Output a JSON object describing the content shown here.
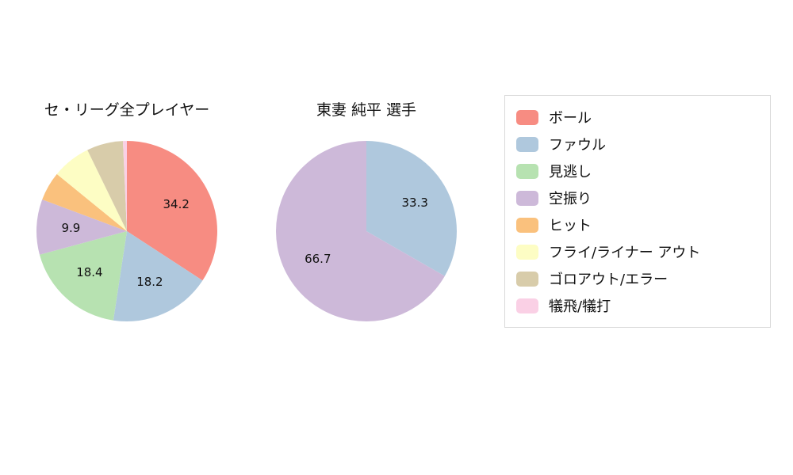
{
  "chart_data": [
    {
      "type": "pie",
      "title": "セ・リーグ全プレイヤー",
      "labels": [
        "ボール",
        "ファウル",
        "見逃し",
        "空振り",
        "ヒット",
        "フライ/ライナー アウト",
        "ゴロアウト/エラー",
        "犠飛/犠打"
      ],
      "values": [
        34.2,
        18.2,
        18.4,
        9.9,
        5.2,
        6.9,
        6.5,
        0.7
      ],
      "shown_value_labels": [
        "34.2",
        "18.2",
        "18.4",
        "9.9",
        "",
        "",
        "",
        ""
      ],
      "start_angle": "top",
      "direction": "clockwise"
    },
    {
      "type": "pie",
      "title": "東妻 純平 選手",
      "labels": [
        "ファウル",
        "空振り"
      ],
      "values": [
        33.3,
        66.7
      ],
      "shown_value_labels": [
        "33.3",
        "66.7"
      ],
      "start_angle": "top",
      "direction": "clockwise"
    }
  ],
  "legend": {
    "position": "right",
    "items": [
      {
        "label": "ボール",
        "color": "#f78c82"
      },
      {
        "label": "ファウル",
        "color": "#afc8dd"
      },
      {
        "label": "見逃し",
        "color": "#b7e2b1"
      },
      {
        "label": "空振り",
        "color": "#cdb9d9"
      },
      {
        "label": "ヒット",
        "color": "#fac17d"
      },
      {
        "label": "フライ/ライナー アウト",
        "color": "#fdfdc4"
      },
      {
        "label": "ゴロアウト/エラー",
        "color": "#d8ccaa"
      },
      {
        "label": "犠飛/犠打",
        "color": "#fad0e5"
      }
    ]
  }
}
